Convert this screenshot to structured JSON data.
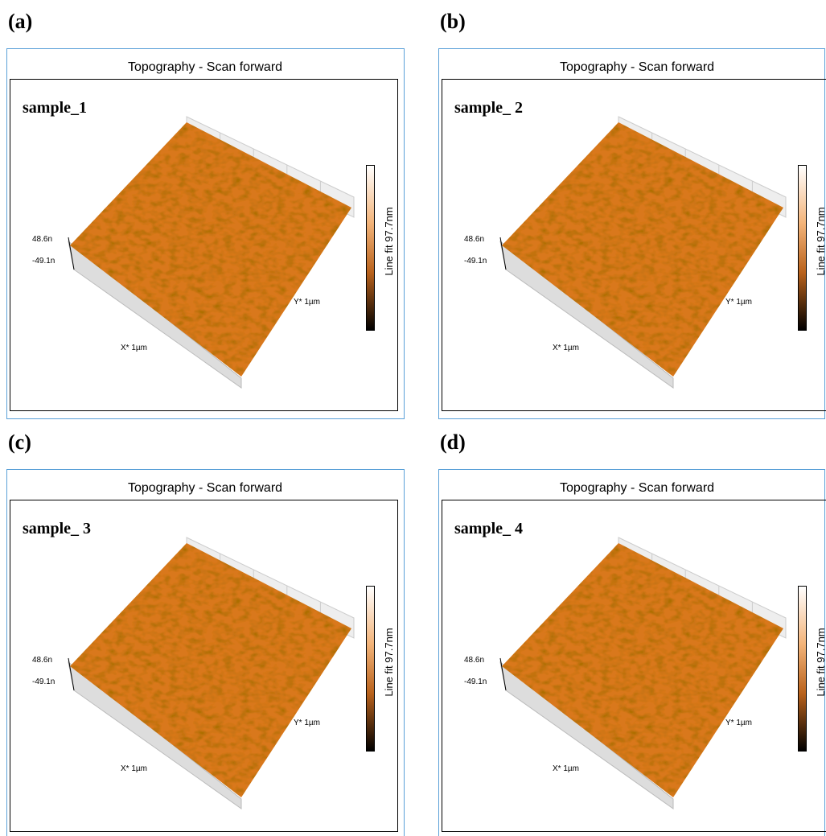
{
  "panels": [
    {
      "letter": "(a)",
      "title": "Topography - Scan forward",
      "sample": "sample_1",
      "z_max": "48.6n",
      "z_min": "-49.1n",
      "x_axis": "X* 1µm",
      "y_axis": "Y* 1µm",
      "colorbar": "Line fit 97.7nm"
    },
    {
      "letter": "(b)",
      "title": "Topography - Scan forward",
      "sample": "sample_ 2",
      "z_max": "48.6n",
      "z_min": "-49.1n",
      "x_axis": "X* 1µm",
      "y_axis": "Y* 1µm",
      "colorbar": "Line fit 97.7nm"
    },
    {
      "letter": "(c)",
      "title": "Topography - Scan forward",
      "sample": "sample_ 3",
      "z_max": "48.6n",
      "z_min": "-49.1n",
      "x_axis": "X* 1µm",
      "y_axis": "Y* 1µm",
      "colorbar": "Line fit 97.7nm"
    },
    {
      "letter": "(d)",
      "title": "Topography - Scan forward",
      "sample": "sample_ 4",
      "z_max": "48.6n",
      "z_min": "-49.1n",
      "x_axis": "X* 1µm",
      "y_axis": "Y* 1µm",
      "colorbar": "Line fit 97.7nm"
    }
  ]
}
